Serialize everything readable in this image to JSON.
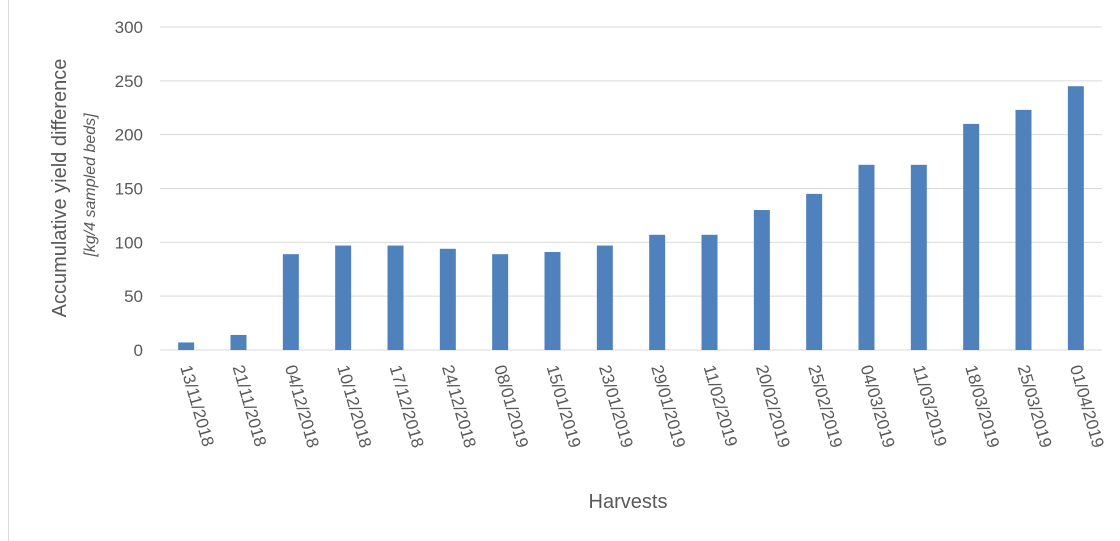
{
  "chart_data": {
    "type": "bar",
    "title": "",
    "xlabel": "Harvests",
    "ylabel": "Accumulative yield difference",
    "ylabel_unit": "[kg/4 sampled beds]",
    "ylim": [
      0,
      300
    ],
    "yticks": [
      0,
      50,
      100,
      150,
      200,
      250,
      300
    ],
    "grid": "horizontal",
    "legend": "none",
    "bar_color": "#4f81bd",
    "categories": [
      "13/11/2018",
      "21/11/2018",
      "04/12/2018",
      "10/12/2018",
      "17/12/2018",
      "24/12/2018",
      "08/01/2019",
      "15/01/2019",
      "23/01/2019",
      "29/01/2019",
      "11/02/2019",
      "20/02/2019",
      "25/02/2019",
      "04/03/2019",
      "11/03/2019",
      "18/03/2019",
      "25/03/2019",
      "01/04/2019"
    ],
    "values": [
      7,
      14,
      89,
      97,
      97,
      94,
      89,
      91,
      97,
      107,
      107,
      130,
      145,
      172,
      172,
      210,
      223,
      245
    ]
  }
}
